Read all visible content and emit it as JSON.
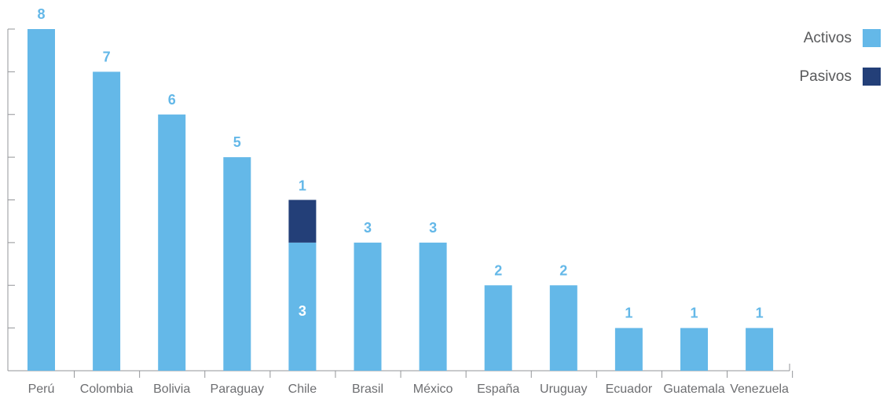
{
  "chart_data": {
    "type": "bar",
    "stacked": true,
    "categories": [
      "Perú",
      "Colombia",
      "Bolivia",
      "Paraguay",
      "Chile",
      "Brasil",
      "México",
      "España",
      "Uruguay",
      "Ecuador",
      "Guatemala",
      "Venezuela"
    ],
    "series": [
      {
        "name": "Activos",
        "values": [
          8,
          7,
          6,
          5,
          3,
          3,
          3,
          2,
          2,
          1,
          1,
          1
        ],
        "color": "#64b8e8"
      },
      {
        "name": "Pasivos",
        "values": [
          0,
          0,
          0,
          0,
          1,
          0,
          0,
          0,
          0,
          0,
          0,
          0
        ],
        "color": "#233f78"
      }
    ],
    "ylim": [
      0,
      8
    ],
    "grid": false,
    "legend": "top-right",
    "label_color": "#64b8e8",
    "inside_label_color": "#ffffff",
    "axis_color": "#939598"
  }
}
